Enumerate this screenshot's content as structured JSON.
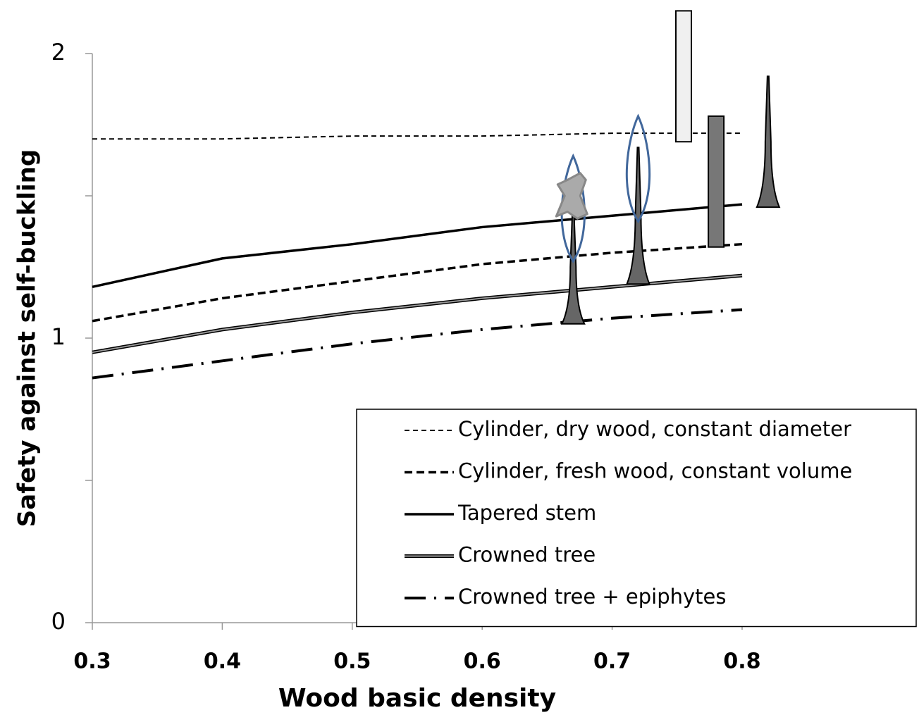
{
  "chart_data": {
    "type": "line",
    "xlabel": "Wood basic density",
    "ylabel": "Safety against self-buckling",
    "x": [
      0.3,
      0.4,
      0.5,
      0.6,
      0.7,
      0.8
    ],
    "xlim": [
      0.3,
      0.8
    ],
    "xticks": [
      0.3,
      0.4,
      0.5,
      0.6,
      0.7,
      0.8
    ],
    "ylim": [
      0,
      2
    ],
    "yticks": [
      0,
      1,
      2
    ],
    "yminorticks": [
      0.5,
      1.5
    ],
    "legend": "lower right",
    "series": [
      {
        "name": "Cylinder, dry wood, constant diameter",
        "color": "#000000",
        "style": "dotted",
        "values": [
          1.7,
          1.7,
          1.71,
          1.71,
          1.72,
          1.72
        ]
      },
      {
        "name": "Cylinder, fresh wood, constant volume",
        "color": "#000000",
        "style": "dashed",
        "values": [
          1.06,
          1.14,
          1.2,
          1.26,
          1.3,
          1.33
        ]
      },
      {
        "name": "Tapered stem",
        "color": "#000000",
        "style": "solid",
        "values": [
          1.18,
          1.28,
          1.33,
          1.39,
          1.43,
          1.47
        ]
      },
      {
        "name": "Crowned tree",
        "color": "#999999",
        "style": "double",
        "values": [
          0.95,
          1.03,
          1.09,
          1.14,
          1.18,
          1.22
        ]
      },
      {
        "name": "Crowned tree + epiphytes",
        "color": "#000000",
        "style": "dashdot",
        "values": [
          0.86,
          0.92,
          0.98,
          1.03,
          1.07,
          1.1
        ]
      }
    ],
    "markers": [
      {
        "x": 0.67,
        "low": 1.05,
        "high": 1.45,
        "shape": "tree",
        "color": "#666666"
      },
      {
        "x": 0.67,
        "low": 1.27,
        "high": 1.64,
        "shape": "flame",
        "color": "#41679b"
      },
      {
        "x": 0.67,
        "low": 1.42,
        "high": 1.58,
        "shape": "blob",
        "color": "#aaaaaa"
      },
      {
        "x": 0.72,
        "low": 1.19,
        "high": 1.67,
        "shape": "tree",
        "color": "#666666"
      },
      {
        "x": 0.72,
        "low": 1.41,
        "high": 1.78,
        "shape": "flame",
        "color": "#41679b"
      },
      {
        "x": 0.755,
        "low": 1.69,
        "high": 2.15,
        "shape": "bar",
        "color": "#f0f0f0"
      },
      {
        "x": 0.78,
        "low": 1.32,
        "high": 1.78,
        "shape": "bar",
        "color": "#777777"
      },
      {
        "x": 0.82,
        "low": 1.46,
        "high": 1.92,
        "shape": "tree",
        "color": "#666666"
      }
    ]
  }
}
